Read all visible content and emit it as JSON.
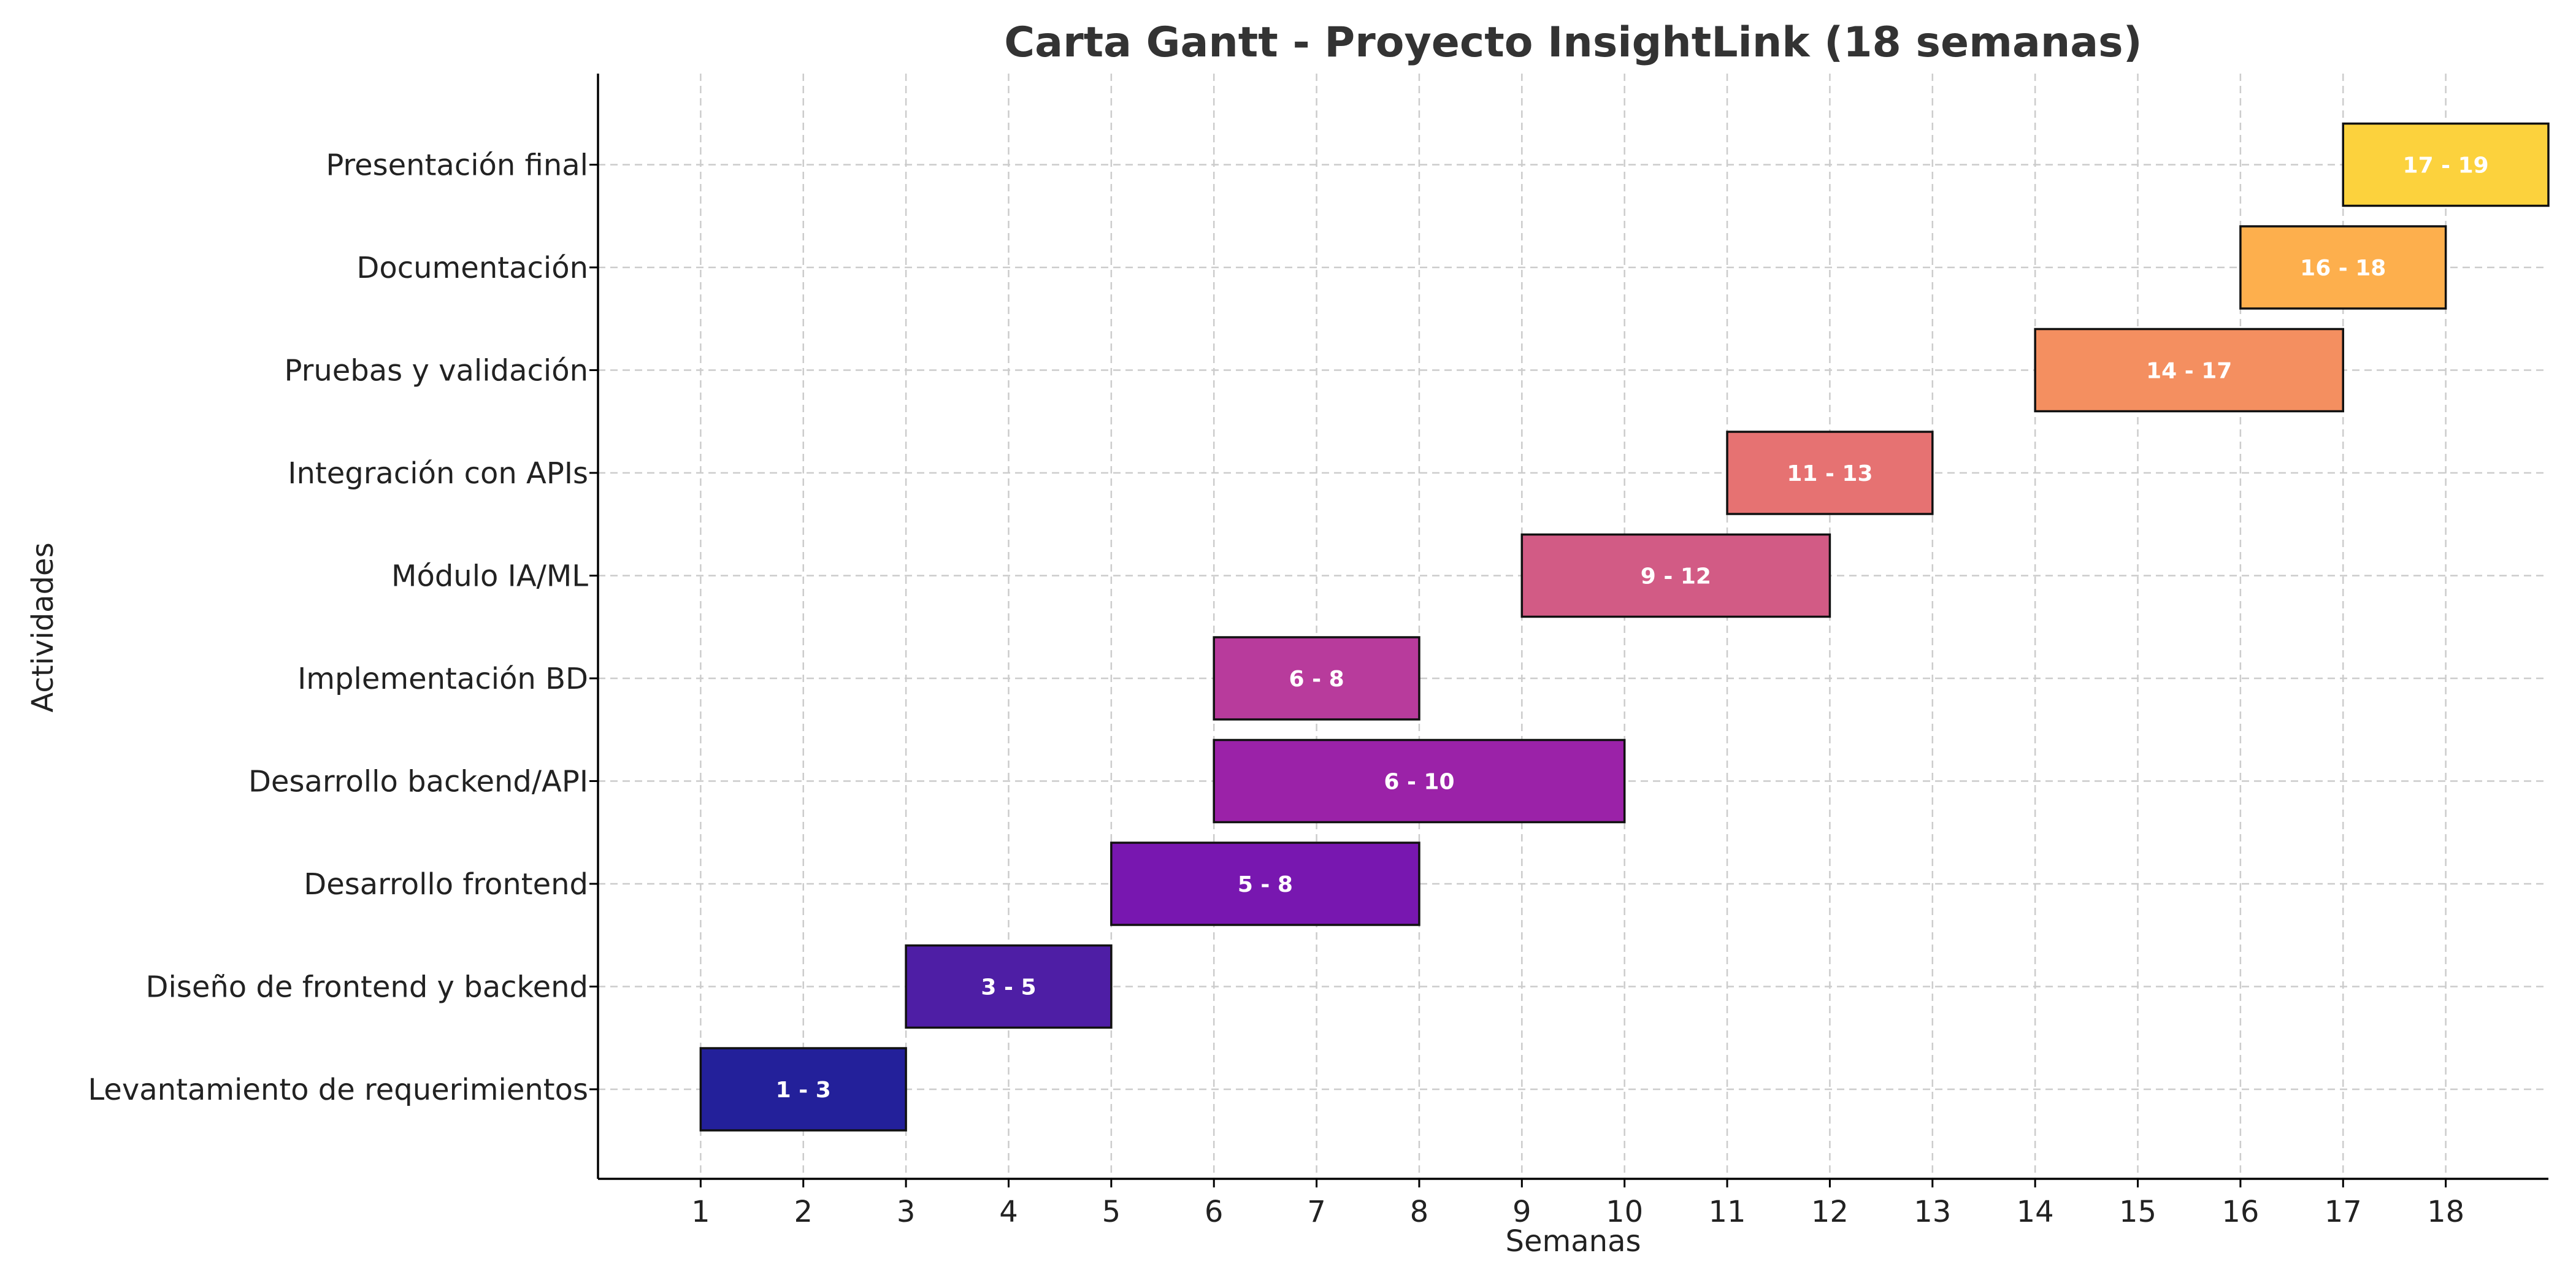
{
  "chart_data": {
    "type": "gantt",
    "title": "Carta Gantt - Proyecto InsightLink (18 semanas)",
    "xlabel": "Semanas",
    "ylabel": "Actividades",
    "xlim": [
      0,
      19
    ],
    "xticks": [
      1,
      2,
      3,
      4,
      5,
      6,
      7,
      8,
      9,
      10,
      11,
      12,
      13,
      14,
      15,
      16,
      17,
      18
    ],
    "grid": true,
    "tasks": [
      {
        "name": "Levantamiento de requerimientos",
        "start": 1,
        "end": 3,
        "label": "1 - 3",
        "color": "#23209a"
      },
      {
        "name": "Diseño de frontend y backend",
        "start": 3,
        "end": 5,
        "label": "3 - 5",
        "color": "#4e1ea5"
      },
      {
        "name": "Desarrollo frontend",
        "start": 5,
        "end": 8,
        "label": "5 - 8",
        "color": "#7817b0"
      },
      {
        "name": "Desarrollo backend/API",
        "start": 6,
        "end": 10,
        "label": "6 - 10",
        "color": "#9b22a8"
      },
      {
        "name": "Implementación BD",
        "start": 6,
        "end": 8,
        "label": "6 - 8",
        "color": "#b83b9c"
      },
      {
        "name": "Módulo IA/ML",
        "start": 9,
        "end": 12,
        "label": "9 - 12",
        "color": "#d25b85"
      },
      {
        "name": "Integración con APIs",
        "start": 11,
        "end": 13,
        "label": "11 - 13",
        "color": "#e67272"
      },
      {
        "name": "Pruebas y validación",
        "start": 14,
        "end": 17,
        "label": "14 - 17",
        "color": "#f48f60"
      },
      {
        "name": "Documentación",
        "start": 16,
        "end": 18,
        "label": "16 - 18",
        "color": "#fdaf4d"
      },
      {
        "name": "Presentación final",
        "start": 17,
        "end": 19,
        "label": "17 - 19",
        "color": "#fcd23d"
      }
    ]
  }
}
